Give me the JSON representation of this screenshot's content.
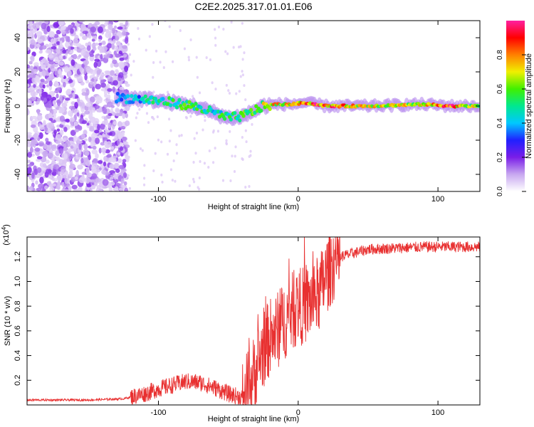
{
  "title": "C2E2.2025.317.01.01.E06",
  "chart_data": [
    {
      "type": "heatmap",
      "xlabel": "Height of straight line (km)",
      "ylabel": "Frequency (Hz)",
      "xlim": [
        -194,
        130
      ],
      "ylim": [
        -50,
        50
      ],
      "xticks": [
        -100,
        0,
        100
      ],
      "xtick_labels": [
        "-100",
        "0",
        "100"
      ],
      "yticks": [
        -40,
        -20,
        0,
        20,
        40
      ],
      "ytick_labels": [
        "-40",
        "-20",
        "0",
        "20",
        "40"
      ],
      "colorbar": {
        "label": "Normalized spectral amplitude",
        "range": [
          0,
          1
        ],
        "ticks": [
          0.0,
          0.2,
          0.4,
          0.6,
          0.8
        ],
        "tick_labels": [
          "0.0",
          "0.2",
          "0.4",
          "0.6",
          "0.8"
        ],
        "colormap": [
          "#ffffff",
          "#c8a8f0",
          "#7a1ee8",
          "#2020ff",
          "#00c8ff",
          "#00e890",
          "#40f000",
          "#f0f000",
          "#ff8000",
          "#ff0000",
          "#ff20a0"
        ]
      },
      "noise_region": {
        "x": [
          -194,
          -122
        ],
        "y": [
          -50,
          50
        ],
        "amplitude": [
          0.05,
          0.2
        ]
      },
      "ridge": {
        "x": [
          -130,
          -110,
          -90,
          -75,
          -60,
          -50,
          -40,
          -32,
          -25,
          -15,
          -5,
          5,
          20,
          50,
          90,
          110,
          130
        ],
        "y": [
          5,
          4,
          2,
          0,
          -4,
          -7,
          -6,
          -3,
          0,
          1,
          1,
          2,
          0,
          0,
          1,
          0,
          0
        ],
        "amplitude": [
          0.35,
          0.45,
          0.55,
          0.55,
          0.5,
          0.55,
          0.6,
          0.6,
          0.7,
          0.75,
          0.8,
          0.9,
          0.9,
          0.7,
          0.7,
          0.9,
          0.6
        ]
      }
    },
    {
      "type": "line",
      "xlabel": "Height of straight line (km)",
      "ylabel": "SNR (10 * v/v)",
      "y_multiplier": "(x10^4)",
      "multiplier_base": "(x10",
      "multiplier_exp": "4",
      "multiplier_close": ")",
      "xlim": [
        -194,
        130
      ],
      "ylim": [
        0,
        13600
      ],
      "xticks": [
        -100,
        0,
        100
      ],
      "xtick_labels": [
        "-100",
        "0",
        "100"
      ],
      "yticks": [
        2000,
        4000,
        6000,
        8000,
        10000,
        12000
      ],
      "ytick_labels": [
        "0.2",
        "0.4",
        "0.6",
        "0.8",
        "1.0",
        "1.2"
      ],
      "color": "#e83030",
      "series": [
        {
          "name": "SNR",
          "x": [
            -194,
            -150,
            -125,
            -110,
            -100,
            -90,
            -80,
            -70,
            -60,
            -50,
            -40,
            -35,
            -30,
            -25,
            -20,
            -15,
            -10,
            -5,
            0,
            5,
            10,
            15,
            20,
            25,
            30,
            40,
            50,
            70,
            90,
            110,
            130
          ],
          "y": [
            400,
            400,
            500,
            900,
            1300,
            1600,
            1900,
            1800,
            1400,
            900,
            600,
            1500,
            3000,
            4500,
            5500,
            6000,
            6800,
            7500,
            8000,
            8000,
            8500,
            9000,
            10500,
            11500,
            12000,
            12300,
            12600,
            12700,
            12800,
            12800,
            12800
          ]
        }
      ]
    }
  ]
}
